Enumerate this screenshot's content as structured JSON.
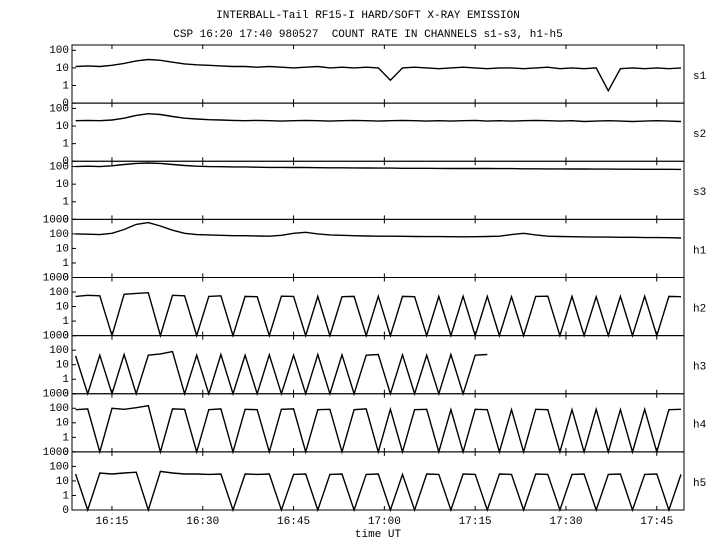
{
  "chart_data": {
    "type": "line",
    "title": "INTERBALL-Tail RF15-I HARD/SOFT X-RAY EMISSION",
    "subtitle": "CSP 16:20 17:40 980527  COUNT RATE IN CHANNELS s1-s3, h1-h5",
    "xlabel": "time UT",
    "log_y": true,
    "color": "#000000",
    "xlim": [
      968.4,
      1069.5
    ],
    "xticks": [
      {
        "value": 975,
        "label": "16:15"
      },
      {
        "value": 990,
        "label": "16:30"
      },
      {
        "value": 1005,
        "label": "16:45"
      },
      {
        "value": 1020,
        "label": "17:00"
      },
      {
        "value": 1035,
        "label": "17:15"
      },
      {
        "value": 1050,
        "label": "17:30"
      },
      {
        "value": 1065,
        "label": "17:45"
      }
    ],
    "x": [
      969,
      971,
      973,
      975,
      977,
      979,
      981,
      983,
      985,
      987,
      989,
      991,
      993,
      995,
      997,
      999,
      1001,
      1003,
      1005,
      1007,
      1009,
      1011,
      1013,
      1015,
      1017,
      1019,
      1021,
      1023,
      1025,
      1027,
      1029,
      1031,
      1033,
      1035,
      1037,
      1039,
      1041,
      1043,
      1045,
      1047,
      1049,
      1051,
      1053,
      1055,
      1057,
      1059,
      1061,
      1063,
      1065,
      1067,
      1069
    ],
    "series": [
      {
        "name": "s1",
        "ylim": [
          0.1,
          200
        ],
        "yticks": [
          100,
          10,
          1,
          {
            "value": 0.1,
            "label": "0"
          }
        ],
        "values": [
          12,
          13,
          12,
          14,
          18,
          25,
          30,
          27,
          21,
          17,
          15,
          14,
          13,
          12,
          12,
          11,
          12,
          11,
          10,
          11,
          12,
          10,
          11,
          10,
          11,
          10,
          2,
          10,
          11,
          10,
          9,
          10,
          11,
          10,
          9,
          10,
          10,
          9,
          10,
          11,
          9,
          10,
          9,
          10,
          0.5,
          9,
          10,
          9,
          10,
          9,
          10
        ]
      },
      {
        "name": "s2",
        "ylim": [
          0.1,
          200
        ],
        "yticks": [
          100,
          10,
          1,
          {
            "value": 0.1,
            "label": "0"
          }
        ],
        "values": [
          20,
          21,
          20,
          22,
          28,
          40,
          50,
          45,
          35,
          28,
          25,
          23,
          22,
          21,
          20,
          21,
          20,
          19,
          20,
          21,
          20,
          19,
          20,
          21,
          20,
          19,
          20,
          21,
          20,
          19,
          20,
          19,
          20,
          21,
          19,
          20,
          19,
          20,
          21,
          20,
          19,
          20,
          18,
          19,
          20,
          19,
          18,
          19,
          20,
          19,
          18
        ]
      },
      {
        "name": "s3",
        "ylim": [
          0.1,
          200
        ],
        "yticks": [
          100,
          10,
          1,
          {
            "value": 0.1,
            "label": "0"
          }
        ],
        "values": [
          100,
          105,
          100,
          110,
          130,
          150,
          160,
          150,
          130,
          115,
          105,
          100,
          98,
          95,
          95,
          92,
          90,
          90,
          88,
          88,
          86,
          85,
          85,
          84,
          83,
          82,
          82,
          80,
          80,
          80,
          79,
          78,
          78,
          77,
          77,
          76,
          76,
          75,
          75,
          74,
          74,
          73,
          73,
          72,
          72,
          71,
          71,
          70,
          70,
          70,
          69
        ]
      },
      {
        "name": "h1",
        "ylim": [
          0.1,
          1000
        ],
        "yticks": [
          1000,
          100,
          10,
          1,
          {
            "value": 0.1,
            "label": "0"
          }
        ],
        "values": [
          100,
          95,
          90,
          110,
          200,
          450,
          600,
          350,
          180,
          110,
          90,
          85,
          80,
          75,
          75,
          72,
          70,
          80,
          110,
          130,
          100,
          85,
          80,
          75,
          72,
          70,
          70,
          68,
          66,
          65,
          65,
          64,
          63,
          64,
          66,
          70,
          90,
          110,
          85,
          70,
          66,
          64,
          62,
          60,
          60,
          58,
          58,
          56,
          56,
          55,
          52
        ]
      },
      {
        "name": "h2",
        "ylim": [
          0.1,
          1000
        ],
        "yticks": [
          1000,
          100,
          10,
          1,
          {
            "value": 0.1,
            "label": "0"
          }
        ],
        "values": [
          50,
          60,
          55,
          0.1,
          70,
          80,
          90,
          0.1,
          60,
          55,
          0.1,
          50,
          55,
          0.1,
          50,
          48,
          0.1,
          52,
          50,
          0.1,
          50,
          0.1,
          48,
          50,
          0.1,
          52,
          0.1,
          50,
          48,
          0.1,
          50,
          0.1,
          52,
          0.1,
          50,
          0.1,
          48,
          0.1,
          50,
          52,
          0.1,
          50,
          0.1,
          48,
          0.1,
          50,
          0.1,
          52,
          0.1,
          50,
          48
        ]
      },
      {
        "name": "h3",
        "ylim": [
          0.1,
          1000
        ],
        "yticks": [
          1000,
          100,
          10,
          1,
          {
            "value": 0.1,
            "label": "0"
          }
        ],
        "values": [
          40,
          0.1,
          45,
          0.1,
          50,
          0.1,
          45,
          55,
          80,
          0.1,
          45,
          0.1,
          50,
          0.1,
          45,
          0.1,
          48,
          0.1,
          45,
          0.1,
          50,
          0.1,
          48,
          0.1,
          45,
          50,
          0.1,
          48,
          0.1,
          45,
          0.1,
          50,
          0.1,
          45,
          50,
          null,
          null,
          null,
          null,
          null,
          null,
          null,
          null,
          null,
          null,
          null,
          null,
          null,
          null,
          null,
          null
        ]
      },
      {
        "name": "h4",
        "ylim": [
          0.1,
          1000
        ],
        "yticks": [
          1000,
          100,
          10,
          1,
          {
            "value": 0.1,
            "label": "0"
          }
        ],
        "values": [
          80,
          90,
          0.1,
          100,
          85,
          110,
          150,
          0.1,
          90,
          85,
          0.1,
          80,
          90,
          0.1,
          85,
          80,
          0.1,
          85,
          90,
          0.1,
          80,
          85,
          0.1,
          80,
          90,
          0.1,
          85,
          0.1,
          80,
          85,
          0.1,
          80,
          0.1,
          85,
          80,
          0.1,
          80,
          0.1,
          85,
          80,
          0.1,
          80,
          0.1,
          85,
          0.1,
          80,
          0.1,
          85,
          0.1,
          80,
          85
        ]
      },
      {
        "name": "h5",
        "ylim": [
          0.1,
          1000
        ],
        "yticks": [
          1000,
          100,
          10,
          1,
          {
            "value": 0.1,
            "label": "0"
          }
        ],
        "values": [
          30,
          0.1,
          35,
          30,
          35,
          40,
          0.1,
          45,
          35,
          30,
          30,
          28,
          30,
          0.1,
          30,
          28,
          30,
          0.1,
          28,
          30,
          0.1,
          28,
          30,
          0.1,
          28,
          30,
          0.1,
          28,
          0.1,
          30,
          28,
          0.1,
          30,
          28,
          0.1,
          30,
          28,
          0.1,
          30,
          28,
          0.1,
          28,
          30,
          0.1,
          28,
          30,
          0.1,
          28,
          30,
          0.1,
          28
        ]
      }
    ]
  }
}
